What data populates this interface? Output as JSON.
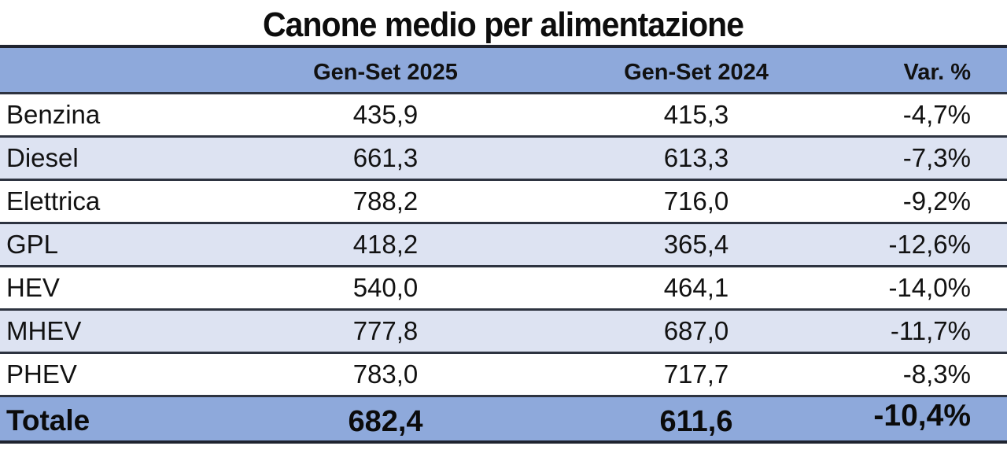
{
  "title": "Canone medio per alimentazione",
  "table": {
    "columns": [
      "",
      "Gen-Set 2025",
      "Gen-Set 2024",
      "Var. %"
    ],
    "rows": [
      {
        "label": "Benzina",
        "v2025": "435,9",
        "v2024": "415,3",
        "var": "-4,7%"
      },
      {
        "label": "Diesel",
        "v2025": "661,3",
        "v2024": "613,3",
        "var": "-7,3%"
      },
      {
        "label": "Elettrica",
        "v2025": "788,2",
        "v2024": "716,0",
        "var": "-9,2%"
      },
      {
        "label": "GPL",
        "v2025": "418,2",
        "v2024": "365,4",
        "var": "-12,6%"
      },
      {
        "label": "HEV",
        "v2025": "540,0",
        "v2024": "464,1",
        "var": "-14,0%"
      },
      {
        "label": "MHEV",
        "v2025": "777,8",
        "v2024": "687,0",
        "var": "-11,7%"
      },
      {
        "label": "PHEV",
        "v2025": "783,0",
        "v2024": "717,7",
        "var": "-8,3%"
      }
    ],
    "total": {
      "label": "Totale",
      "v2025": "682,4",
      "v2024": "611,6",
      "var": "-10,4%"
    }
  },
  "colors": {
    "header_bg": "#8EA9DB",
    "alt_row_bg": "#DDE3F2",
    "white_row_bg": "#FFFFFF",
    "border": "#2D3340",
    "text": "#121212"
  },
  "chart_data": {
    "type": "table",
    "title": "Canone medio per alimentazione",
    "categories": [
      "Benzina",
      "Diesel",
      "Elettrica",
      "GPL",
      "HEV",
      "MHEV",
      "PHEV"
    ],
    "series": [
      {
        "name": "Gen-Set 2025",
        "values": [
          435.9,
          661.3,
          788.2,
          418.2,
          540.0,
          777.8,
          783.0
        ],
        "total": 682.4
      },
      {
        "name": "Gen-Set 2024",
        "values": [
          415.3,
          613.3,
          716.0,
          365.4,
          464.1,
          687.0,
          717.7
        ],
        "total": 611.6
      },
      {
        "name": "Var. %",
        "values": [
          -4.7,
          -7.3,
          -9.2,
          -12.6,
          -14.0,
          -11.7,
          -8.3
        ],
        "total": -10.4
      }
    ],
    "layout_hints": {
      "grid": "horizontal row separators",
      "header_highlight": true,
      "total_row_highlight": true,
      "zebra_striping": true
    }
  }
}
